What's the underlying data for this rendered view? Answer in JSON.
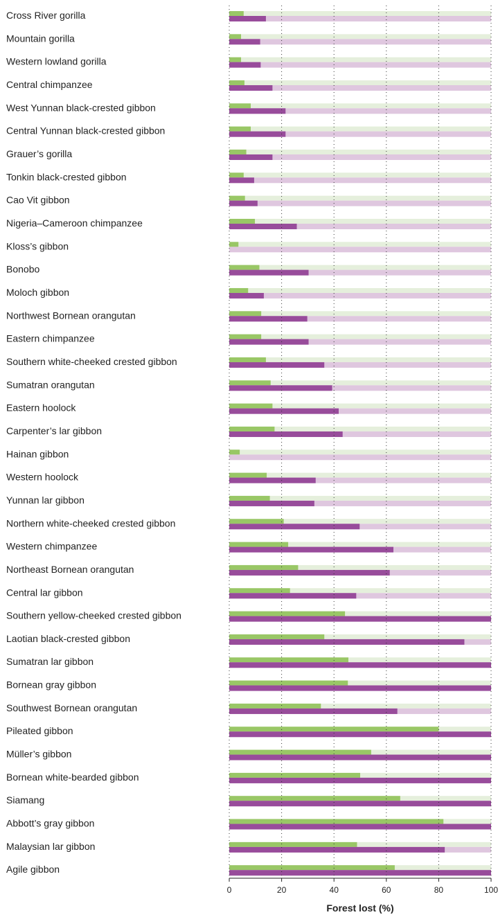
{
  "chart_data": {
    "type": "bar",
    "orientation": "horizontal",
    "xlabel": "Forest lost (%)",
    "ylabel": "",
    "xlim": [
      0,
      100
    ],
    "x_ticks": [
      "0",
      "20",
      "40",
      "60",
      "80",
      "100"
    ],
    "grid": "vertical dotted",
    "legend": "none",
    "colors": {
      "series1": "#99c766",
      "series1_background": "#e5efdc",
      "series2": "#984c9b",
      "series2_background": "#dfc7df",
      "axis": "#222222",
      "grid": "#333333"
    },
    "categories": [
      "Cross River gorilla",
      "Mountain gorilla",
      "Western lowland gorilla",
      "Central chimpanzee",
      "West Yunnan black-crested gibbon",
      "Central Yunnan black-crested gibbon",
      "Grauer’s gorilla",
      "Tonkin black-crested gibbon",
      "Cao Vit gibbon",
      "Nigeria–Cameroon chimpanzee",
      "Kloss’s gibbon",
      "Bonobo",
      "Moloch gibbon",
      "Northwest Bornean orangutan",
      "Eastern chimpanzee",
      "Southern white-cheeked crested gibbon",
      "Sumatran orangutan",
      "Eastern hoolock",
      "Carpenter’s lar gibbon",
      "Hainan gibbon",
      "Western hoolock",
      "Yunnan lar gibbon",
      "Northern white-cheeked crested gibbon",
      "Western chimpanzee",
      "Northeast Bornean orangutan",
      "Central lar gibbon",
      "Southern yellow-cheeked crested gibbon",
      "Laotian black-crested gibbon",
      "Sumatran lar gibbon",
      "Bornean gray gibbon",
      "Southwest Bornean orangutan",
      "Pileated gibbon",
      "Müller’s gibbon",
      "Bornean white-bearded gibbon",
      "Siamang",
      "Abbott’s gray gibbon",
      "Malaysian lar gibbon",
      "Agile gibbon"
    ],
    "series": [
      {
        "values": [
          5.5,
          4.5,
          4.5,
          5.8,
          8.2,
          8.2,
          6.5,
          5.5,
          6.0,
          9.8,
          3.5,
          11.5,
          7.2,
          12.2,
          12.2,
          14.0,
          15.8,
          16.5,
          17.3,
          4.0,
          14.3,
          15.5,
          20.8,
          22.5,
          26.3,
          23.2,
          44.2,
          36.3,
          45.5,
          45.3,
          35.0,
          80.0,
          54.2,
          50.0,
          65.3,
          81.8,
          48.8,
          63.2
        ]
      },
      {
        "values": [
          14.0,
          11.8,
          12.0,
          16.5,
          21.5,
          21.5,
          16.5,
          9.5,
          10.8,
          25.8,
          0.0,
          30.3,
          13.2,
          29.8,
          30.3,
          36.3,
          39.3,
          41.8,
          43.3,
          0.0,
          33.0,
          32.5,
          49.8,
          62.7,
          61.3,
          48.5,
          100.0,
          89.8,
          100.0,
          100.0,
          64.2,
          100.0,
          100.0,
          100.0,
          100.0,
          100.0,
          82.3,
          100.0
        ]
      }
    ]
  }
}
